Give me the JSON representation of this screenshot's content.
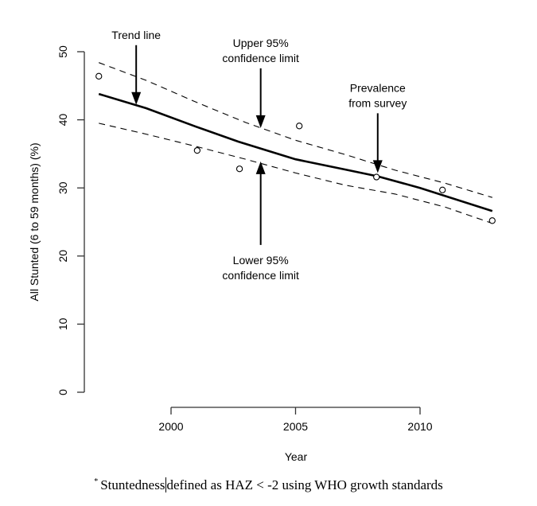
{
  "chart_data": {
    "type": "line",
    "title": "",
    "xlabel": "Year",
    "ylabel": "All Stunted (6 to 59 months) (%)",
    "xlim": [
      1996.5,
      2013.5
    ],
    "ylim": [
      0,
      50
    ],
    "x_ticks": [
      2000,
      2005,
      2010
    ],
    "x_tick_labels": [
      "2000",
      "2005",
      "2010"
    ],
    "y_ticks": [
      0,
      10,
      20,
      30,
      40,
      50
    ],
    "y_tick_labels": [
      "0",
      "10",
      "20",
      "30",
      "40",
      "50"
    ],
    "grid": false,
    "series": [
      {
        "name": "Prevalence from survey",
        "kind": "points",
        "marker": "open-circle",
        "x": [
          1997.1,
          2001.05,
          2002.75,
          2005.15,
          2008.25,
          2010.9,
          2012.9
        ],
        "y": [
          46.4,
          35.5,
          32.8,
          39.1,
          31.6,
          29.7,
          25.2
        ]
      },
      {
        "name": "Trend line",
        "kind": "line",
        "style": "solid",
        "x": [
          1997.1,
          1999.0,
          2001.0,
          2002.7,
          2005.0,
          2007.0,
          2008.3,
          2010.0,
          2012.9
        ],
        "y": [
          43.8,
          41.7,
          39.0,
          36.8,
          34.2,
          32.7,
          31.7,
          30.0,
          26.6
        ]
      },
      {
        "name": "Upper 95% confidence limit",
        "kind": "line",
        "style": "dashed",
        "x": [
          1997.1,
          1999.0,
          2001.0,
          2003.0,
          2005.0,
          2007.0,
          2009.0,
          2011.0,
          2012.9
        ],
        "y": [
          48.4,
          45.8,
          42.6,
          39.6,
          37.0,
          34.9,
          32.6,
          30.7,
          28.6
        ]
      },
      {
        "name": "Lower 95% confidence limit",
        "kind": "line",
        "style": "dashed",
        "x": [
          1997.1,
          1999.0,
          2001.0,
          2003.0,
          2005.0,
          2007.0,
          2009.0,
          2011.0,
          2012.9
        ],
        "y": [
          39.5,
          37.9,
          36.1,
          34.2,
          32.2,
          30.4,
          29.1,
          27.2,
          24.8
        ]
      }
    ],
    "annotations": [
      {
        "name": "trend-line",
        "lines": [
          "Trend line"
        ],
        "direction": "down",
        "target": [
          1998.6,
          42.2
        ]
      },
      {
        "name": "upper-confidence-limit",
        "lines": [
          "Upper 95%",
          "confidence limit"
        ],
        "direction": "down",
        "target": [
          2003.6,
          38.8
        ]
      },
      {
        "name": "prevalence-from-survey",
        "lines": [
          "Prevalence",
          "from survey"
        ],
        "direction": "down",
        "target": [
          2008.3,
          32.2
        ]
      },
      {
        "name": "lower-confidence-limit",
        "lines": [
          "Lower 95%",
          "confidence limit"
        ],
        "direction": "up",
        "target": [
          2003.6,
          33.9
        ]
      }
    ]
  },
  "footnote": {
    "marker": "*",
    "before_cursor": "Stuntedness",
    "after_cursor": "defined as HAZ < -2 using WHO growth standards"
  }
}
